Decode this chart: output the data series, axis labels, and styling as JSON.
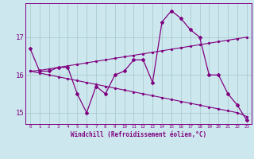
{
  "xlabel": "Windchill (Refroidissement éolien,°C)",
  "background_color": "#cce8ee",
  "grid_color": "#aacccc",
  "line_color": "#800080",
  "x": [
    0,
    1,
    2,
    3,
    4,
    5,
    6,
    7,
    8,
    9,
    10,
    11,
    12,
    13,
    14,
    15,
    16,
    17,
    18,
    19,
    20,
    21,
    22,
    23
  ],
  "y_main": [
    16.7,
    16.1,
    16.1,
    16.2,
    16.2,
    15.5,
    15.0,
    15.7,
    15.5,
    16.0,
    16.1,
    16.4,
    16.4,
    15.8,
    17.4,
    17.7,
    17.5,
    17.2,
    17.0,
    16.0,
    16.0,
    15.5,
    15.2,
    14.8
  ],
  "y_trend1": [
    16.1,
    16.12,
    16.16,
    16.2,
    16.24,
    16.28,
    16.32,
    16.36,
    16.4,
    16.44,
    16.48,
    16.52,
    16.56,
    16.6,
    16.64,
    16.68,
    16.72,
    16.76,
    16.8,
    16.84,
    16.88,
    16.92,
    16.96,
    17.0
  ],
  "y_trend2": [
    16.1,
    16.05,
    16.0,
    15.95,
    15.9,
    15.85,
    15.8,
    15.75,
    15.7,
    15.65,
    15.6,
    15.55,
    15.5,
    15.45,
    15.4,
    15.35,
    15.3,
    15.25,
    15.2,
    15.15,
    15.1,
    15.05,
    15.0,
    14.9
  ],
  "ylim": [
    14.7,
    17.9
  ],
  "yticks": [
    15,
    16,
    17
  ],
  "xticks": [
    0,
    1,
    2,
    3,
    4,
    5,
    6,
    7,
    8,
    9,
    10,
    11,
    12,
    13,
    14,
    15,
    16,
    17,
    18,
    19,
    20,
    21,
    22,
    23
  ]
}
